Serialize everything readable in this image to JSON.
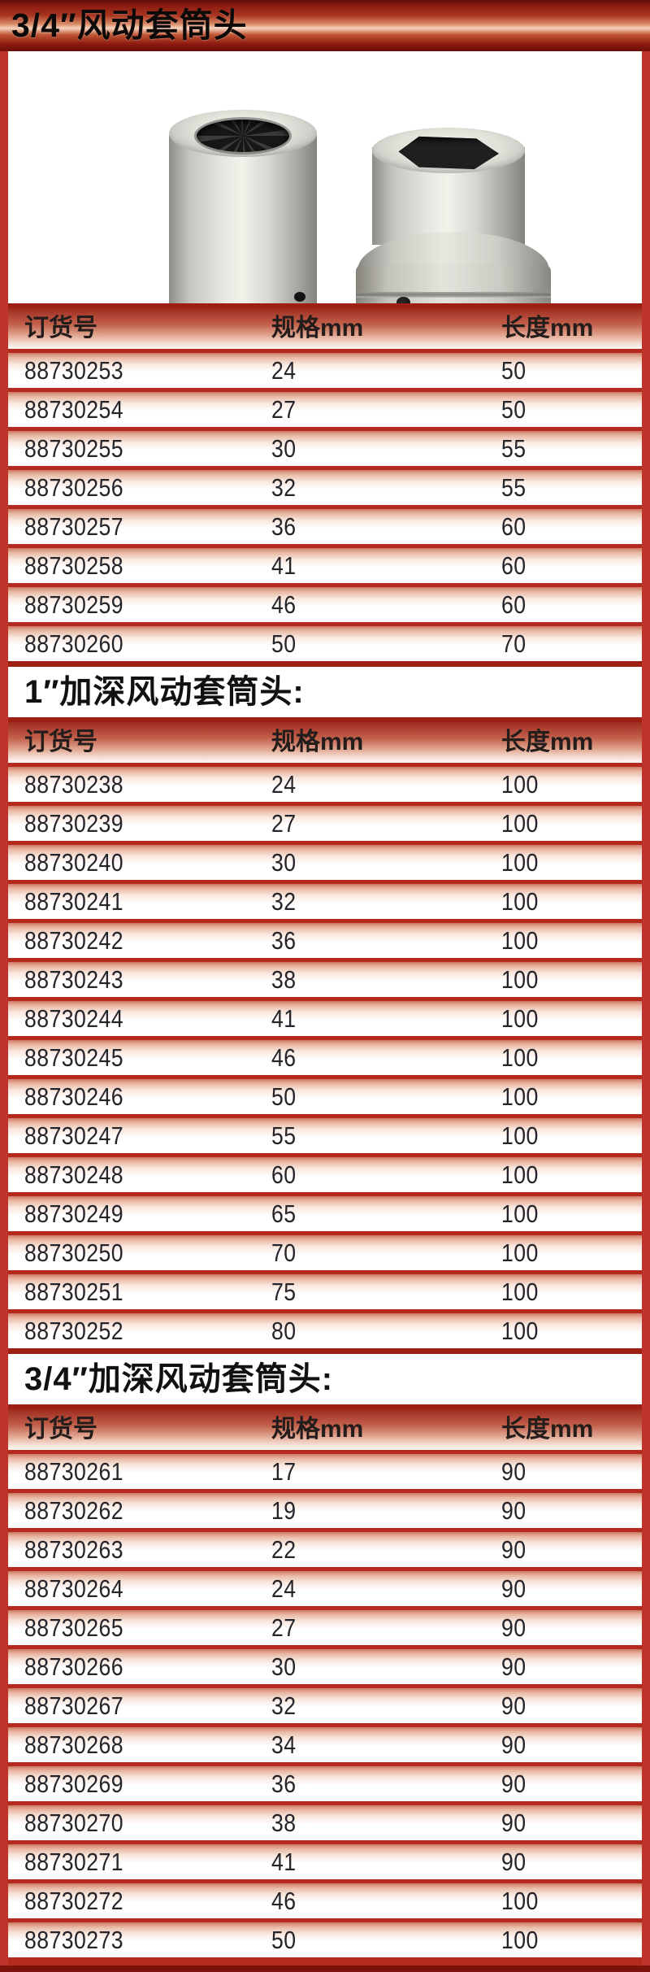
{
  "page": {
    "title": "3/4″风动套筒头",
    "section2_title": "1″加深风动套筒头:",
    "section3_title": "3/4″加深风动套筒头:"
  },
  "columns": [
    "订货号",
    "规格mm",
    "长度mm"
  ],
  "tables": [
    {
      "name": "3/4″风动套筒头",
      "rows": [
        [
          "88730253",
          "24",
          "50"
        ],
        [
          "88730254",
          "27",
          "50"
        ],
        [
          "88730255",
          "30",
          "55"
        ],
        [
          "88730256",
          "32",
          "55"
        ],
        [
          "88730257",
          "36",
          "60"
        ],
        [
          "88730258",
          "41",
          "60"
        ],
        [
          "88730259",
          "46",
          "60"
        ],
        [
          "88730260",
          "50",
          "70"
        ]
      ]
    },
    {
      "name": "1″加深风动套筒头",
      "rows": [
        [
          "88730238",
          "24",
          "100"
        ],
        [
          "88730239",
          "27",
          "100"
        ],
        [
          "88730240",
          "30",
          "100"
        ],
        [
          "88730241",
          "32",
          "100"
        ],
        [
          "88730242",
          "36",
          "100"
        ],
        [
          "88730243",
          "38",
          "100"
        ],
        [
          "88730244",
          "41",
          "100"
        ],
        [
          "88730245",
          "46",
          "100"
        ],
        [
          "88730246",
          "50",
          "100"
        ],
        [
          "88730247",
          "55",
          "100"
        ],
        [
          "88730248",
          "60",
          "100"
        ],
        [
          "88730249",
          "65",
          "100"
        ],
        [
          "88730250",
          "70",
          "100"
        ],
        [
          "88730251",
          "75",
          "100"
        ],
        [
          "88730252",
          "80",
          "100"
        ]
      ]
    },
    {
      "name": "3/4″加深风动套筒头",
      "rows": [
        [
          "88730261",
          "17",
          "90"
        ],
        [
          "88730262",
          "19",
          "90"
        ],
        [
          "88730263",
          "22",
          "90"
        ],
        [
          "88730264",
          "24",
          "90"
        ],
        [
          "88730265",
          "27",
          "90"
        ],
        [
          "88730266",
          "30",
          "90"
        ],
        [
          "88730267",
          "32",
          "90"
        ],
        [
          "88730268",
          "34",
          "90"
        ],
        [
          "88730269",
          "36",
          "90"
        ],
        [
          "88730270",
          "38",
          "90"
        ],
        [
          "88730271",
          "41",
          "90"
        ],
        [
          "88730272",
          "46",
          "100"
        ],
        [
          "88730273",
          "50",
          "100"
        ]
      ]
    }
  ],
  "colors": {
    "frame_red": "#c0332a",
    "separator_red": "#b5291e",
    "dark_red": "#9e2013",
    "banner_dark": "#6b0e09",
    "row_top_tint": "#cc7a62",
    "text": "#24242a"
  }
}
